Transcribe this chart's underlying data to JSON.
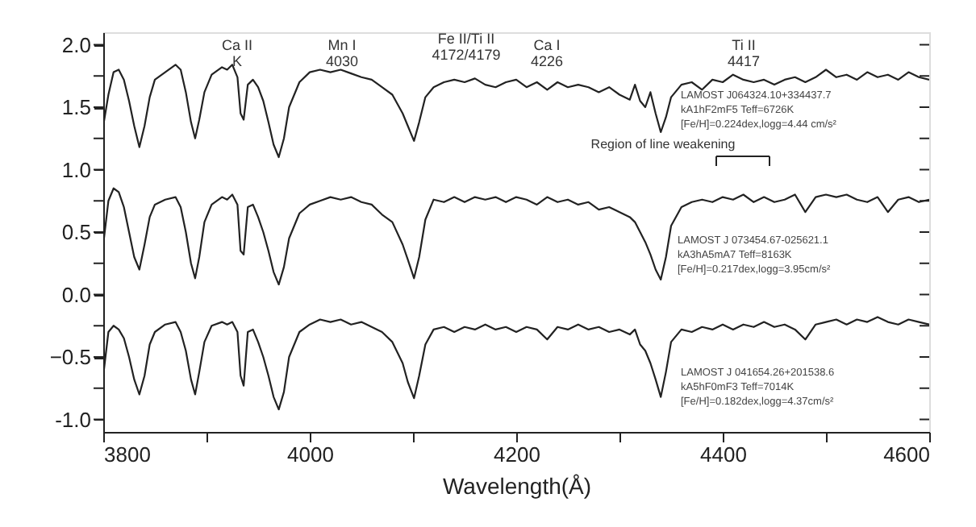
{
  "chart_data": {
    "type": "line",
    "xlabel": "Wavelength(Å)",
    "x": [
      3800,
      3805,
      3810,
      3815,
      3820,
      3825,
      3830,
      3835,
      3840,
      3845,
      3850,
      3860,
      3870,
      3875,
      3880,
      3885,
      3889,
      3893,
      3898,
      3905,
      3915,
      3920,
      3925,
      3930,
      3933,
      3936,
      3940,
      3945,
      3950,
      3955,
      3960,
      3965,
      3970,
      3975,
      3980,
      3990,
      4000,
      4010,
      4020,
      4030,
      4040,
      4050,
      4060,
      4070,
      4080,
      4090,
      4095,
      4101,
      4106,
      4112,
      4120,
      4130,
      4140,
      4150,
      4160,
      4170,
      4180,
      4190,
      4200,
      4210,
      4220,
      4230,
      4240,
      4250,
      4260,
      4270,
      4280,
      4290,
      4300,
      4310,
      4315,
      4320,
      4325,
      4330,
      4335,
      4340,
      4345,
      4350,
      4360,
      4370,
      4380,
      4390,
      4400,
      4410,
      4420,
      4430,
      4440,
      4450,
      4460,
      4470,
      4480,
      4490,
      4500,
      4510,
      4520,
      4530,
      4540,
      4550,
      4560,
      4570,
      4580,
      4590,
      4600
    ],
    "series": [
      {
        "color": "#222222",
        "values": [
          1.35,
          1.6,
          1.78,
          1.8,
          1.72,
          1.55,
          1.35,
          1.18,
          1.35,
          1.58,
          1.72,
          1.78,
          1.84,
          1.8,
          1.62,
          1.38,
          1.25,
          1.4,
          1.62,
          1.76,
          1.82,
          1.8,
          1.84,
          1.74,
          1.45,
          1.4,
          1.68,
          1.72,
          1.66,
          1.55,
          1.38,
          1.2,
          1.1,
          1.25,
          1.5,
          1.7,
          1.78,
          1.8,
          1.78,
          1.8,
          1.77,
          1.74,
          1.72,
          1.66,
          1.6,
          1.45,
          1.35,
          1.23,
          1.38,
          1.58,
          1.66,
          1.7,
          1.72,
          1.7,
          1.73,
          1.68,
          1.66,
          1.7,
          1.72,
          1.66,
          1.7,
          1.64,
          1.7,
          1.66,
          1.68,
          1.66,
          1.62,
          1.66,
          1.6,
          1.56,
          1.68,
          1.55,
          1.5,
          1.62,
          1.45,
          1.3,
          1.42,
          1.58,
          1.68,
          1.7,
          1.64,
          1.72,
          1.7,
          1.76,
          1.72,
          1.7,
          1.72,
          1.68,
          1.72,
          1.74,
          1.7,
          1.74,
          1.8,
          1.74,
          1.76,
          1.72,
          1.78,
          1.74,
          1.76,
          1.72,
          1.78,
          1.74,
          1.72
        ]
      },
      {
        "color": "#222222",
        "values": [
          0.4,
          0.75,
          0.85,
          0.82,
          0.7,
          0.5,
          0.3,
          0.2,
          0.4,
          0.62,
          0.72,
          0.76,
          0.78,
          0.7,
          0.5,
          0.25,
          0.13,
          0.3,
          0.58,
          0.72,
          0.78,
          0.76,
          0.8,
          0.72,
          0.35,
          0.32,
          0.7,
          0.72,
          0.62,
          0.5,
          0.35,
          0.18,
          0.08,
          0.22,
          0.45,
          0.65,
          0.72,
          0.75,
          0.78,
          0.76,
          0.78,
          0.74,
          0.72,
          0.64,
          0.58,
          0.4,
          0.28,
          0.13,
          0.3,
          0.6,
          0.76,
          0.74,
          0.78,
          0.74,
          0.78,
          0.76,
          0.78,
          0.74,
          0.78,
          0.76,
          0.72,
          0.78,
          0.74,
          0.76,
          0.72,
          0.74,
          0.68,
          0.7,
          0.66,
          0.62,
          0.58,
          0.5,
          0.42,
          0.32,
          0.2,
          0.12,
          0.3,
          0.55,
          0.7,
          0.74,
          0.76,
          0.74,
          0.78,
          0.76,
          0.8,
          0.74,
          0.78,
          0.74,
          0.76,
          0.8,
          0.66,
          0.78,
          0.8,
          0.78,
          0.8,
          0.76,
          0.74,
          0.78,
          0.66,
          0.76,
          0.78,
          0.74,
          0.76
        ]
      },
      {
        "color": "#222222",
        "values": [
          -0.65,
          -0.3,
          -0.25,
          -0.28,
          -0.35,
          -0.5,
          -0.68,
          -0.8,
          -0.65,
          -0.4,
          -0.3,
          -0.24,
          -0.22,
          -0.3,
          -0.45,
          -0.68,
          -0.8,
          -0.62,
          -0.38,
          -0.25,
          -0.22,
          -0.24,
          -0.22,
          -0.3,
          -0.65,
          -0.73,
          -0.3,
          -0.28,
          -0.38,
          -0.5,
          -0.65,
          -0.82,
          -0.92,
          -0.78,
          -0.5,
          -0.3,
          -0.24,
          -0.2,
          -0.22,
          -0.2,
          -0.24,
          -0.22,
          -0.26,
          -0.3,
          -0.38,
          -0.55,
          -0.7,
          -0.83,
          -0.65,
          -0.4,
          -0.28,
          -0.26,
          -0.3,
          -0.26,
          -0.28,
          -0.24,
          -0.28,
          -0.26,
          -0.3,
          -0.26,
          -0.28,
          -0.36,
          -0.26,
          -0.28,
          -0.24,
          -0.28,
          -0.26,
          -0.3,
          -0.28,
          -0.32,
          -0.28,
          -0.4,
          -0.45,
          -0.55,
          -0.68,
          -0.82,
          -0.62,
          -0.38,
          -0.28,
          -0.3,
          -0.26,
          -0.28,
          -0.24,
          -0.28,
          -0.24,
          -0.26,
          -0.22,
          -0.26,
          -0.24,
          -0.28,
          -0.36,
          -0.24,
          -0.22,
          -0.2,
          -0.24,
          -0.2,
          -0.22,
          -0.18,
          -0.22,
          -0.24,
          -0.2,
          -0.22,
          -0.24
        ]
      }
    ],
    "xlim": [
      3800,
      4600
    ],
    "xticks": [
      3800,
      {
        "value": 3900,
        "label": null
      },
      4000,
      {
        "value": 4100,
        "label": null
      },
      4200,
      {
        "value": 4300,
        "label": null
      },
      4400,
      {
        "value": 4500,
        "label": null
      },
      4600
    ],
    "ylim": [
      -1.1,
      2.1
    ],
    "yticks": [
      {
        "value": -1,
        "label": "-1.0"
      },
      {
        "value": -0.75,
        "label": null
      },
      -0.5,
      {
        "value": -0.25,
        "label": null
      },
      {
        "value": 0,
        "label": "0.0"
      },
      {
        "value": 0.25,
        "label": null
      },
      0.5,
      {
        "value": 0.75,
        "label": null
      },
      {
        "value": 1,
        "label": "1.0"
      },
      {
        "value": 1.25,
        "label": null
      },
      1.5,
      {
        "value": 1.75,
        "label": null
      },
      {
        "value": 2,
        "label": "2.0"
      }
    ],
    "grid": false,
    "line_style": "solid",
    "annotations": [
      "Ca II\nK",
      "Mn I\n4030",
      "Fe II/Ti II\n4172/4179",
      "Ca I\n4226",
      "Ti II\n4417",
      "LAMOST J064324.10+334437.7\nkA1hF2mF5   Teff=6726K\n[Fe/H]=0.224dex,logg=4.44 cm/s²",
      "Region of line weakening",
      "LAMOST J 073454.67-025621.1\nkA3hA5mA7   Teff=8163K\n[Fe/H]=0.217dex,logg=3.95cm/s²",
      "LAMOST J 041654.26+201538.6\nkA5hF0mF3   Teff=7014K\n[Fe/H]=0.182dex,logg=4.37cm/s²"
    ]
  }
}
